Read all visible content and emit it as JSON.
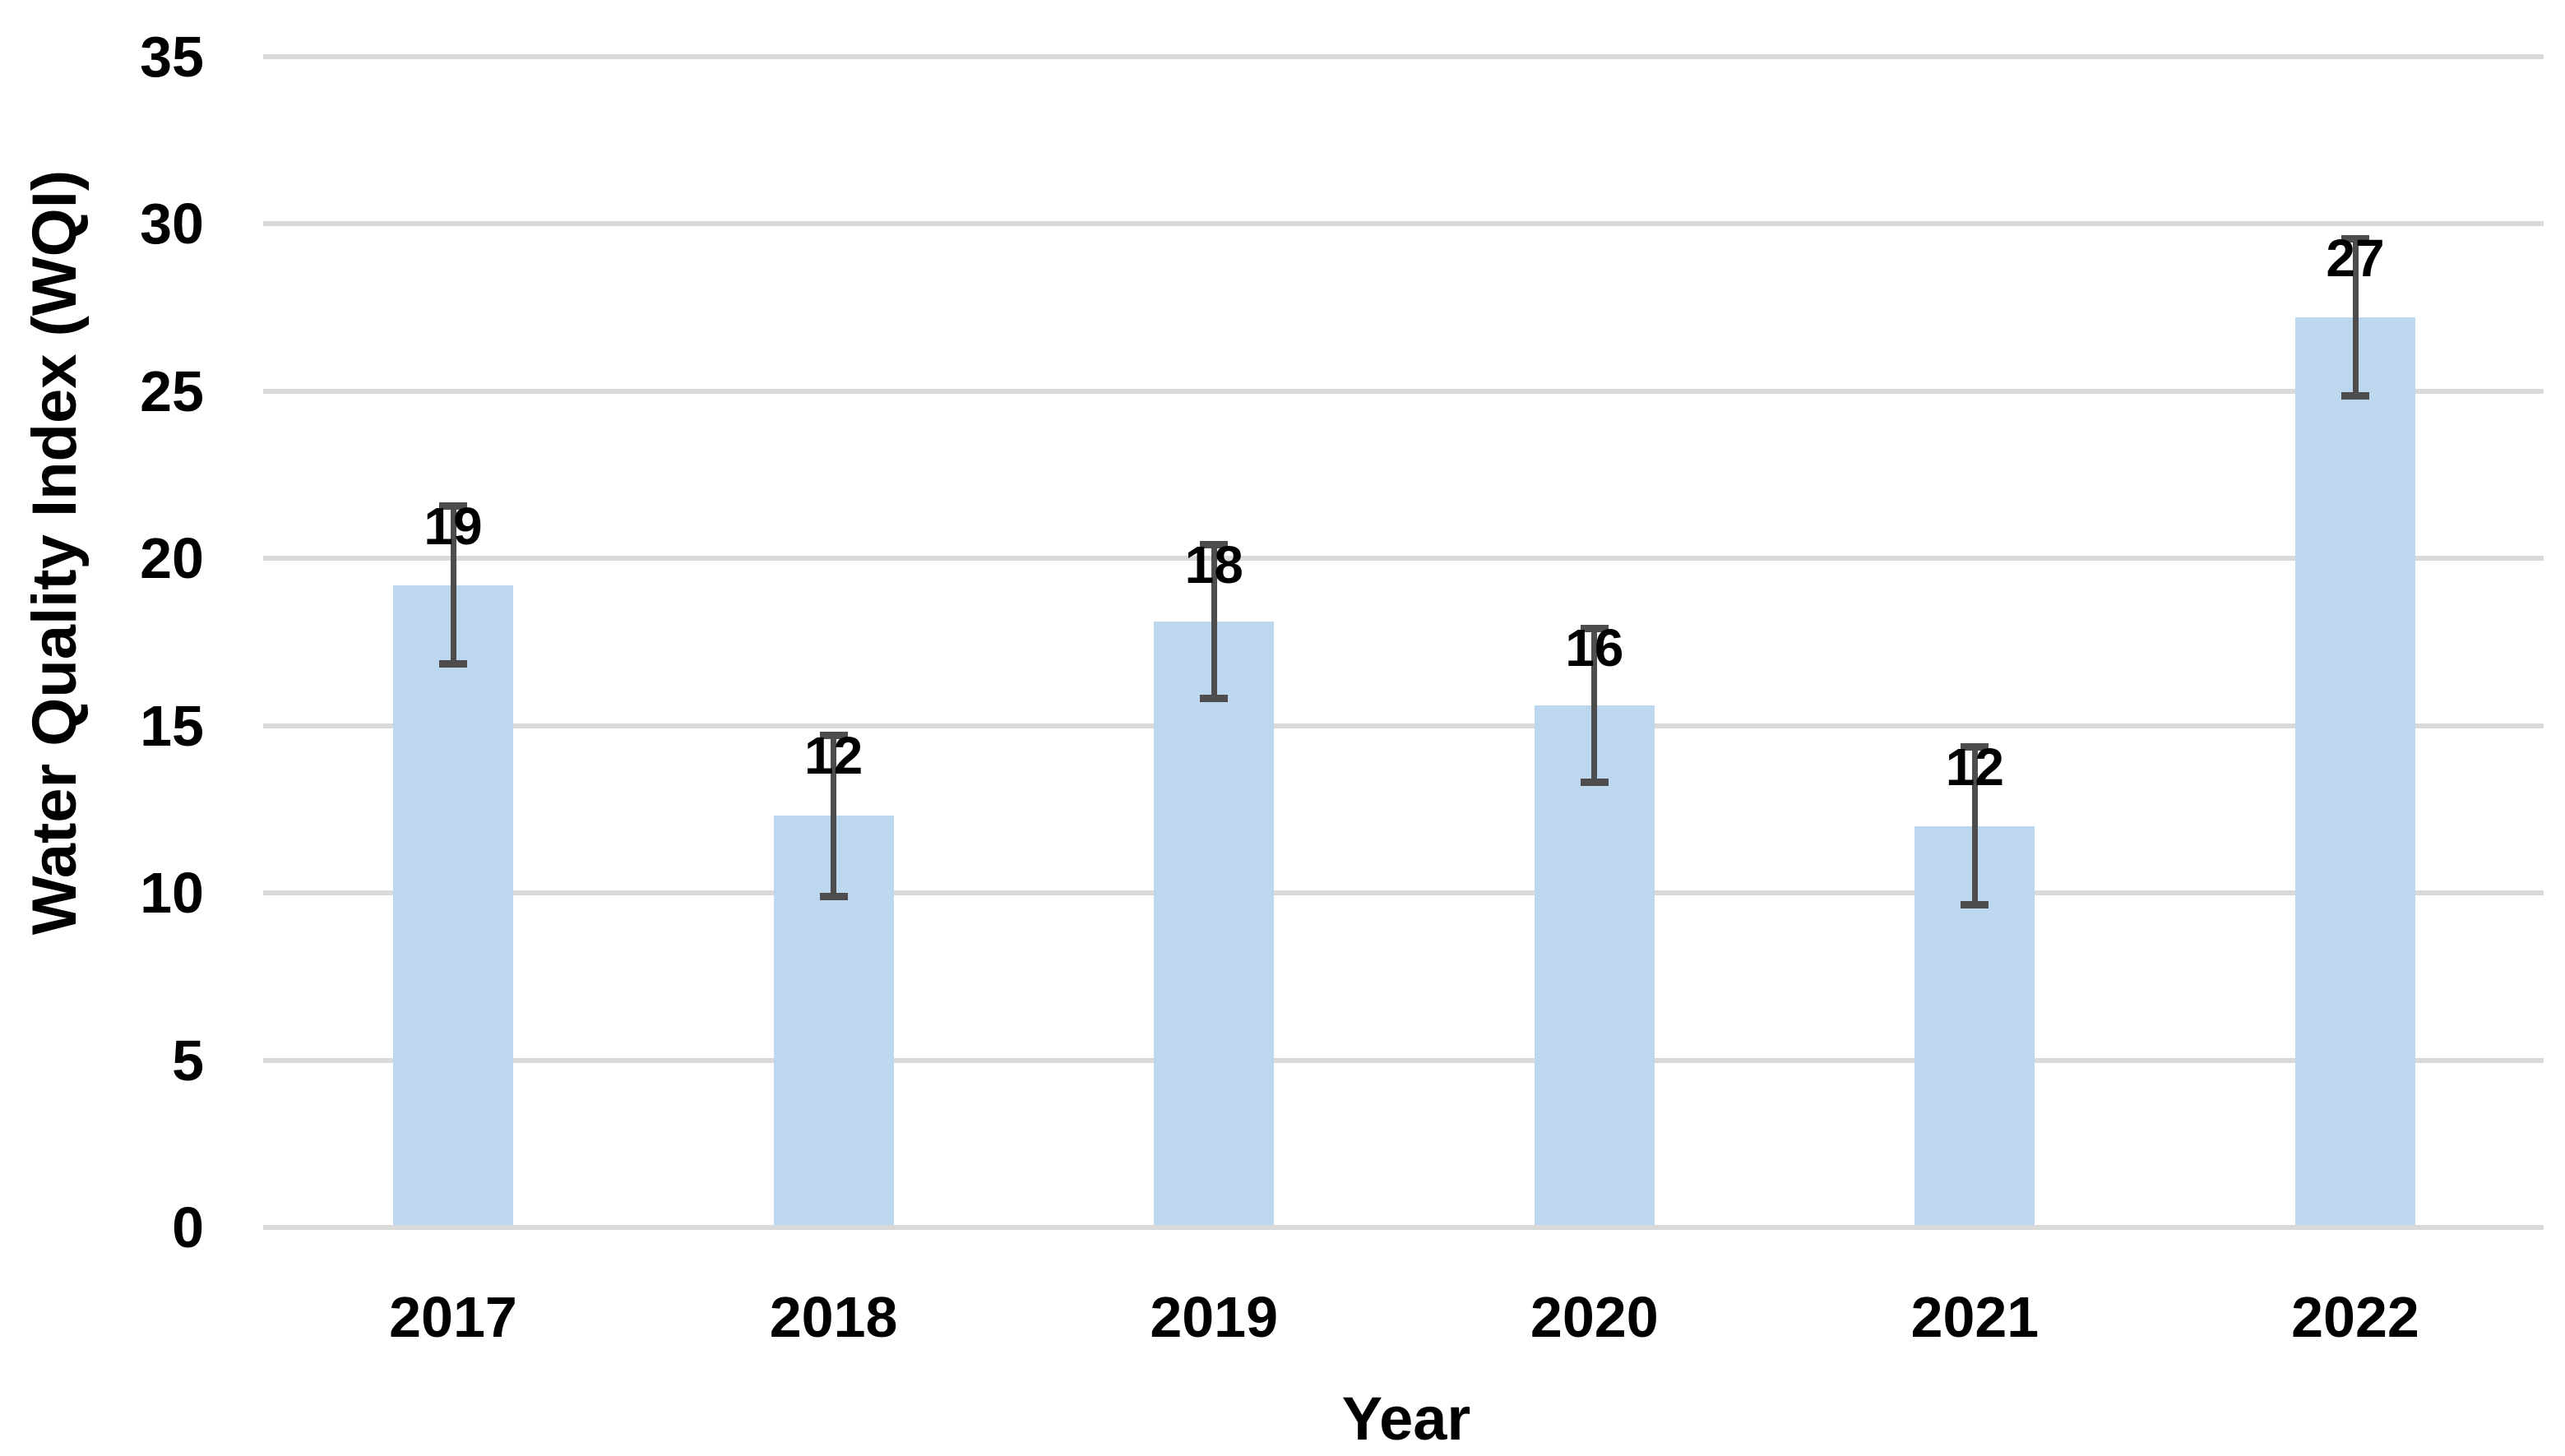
{
  "chart_data": {
    "type": "bar",
    "title": "",
    "xlabel": "Year",
    "ylabel": "Water Quality Index (WQI)",
    "categories": [
      "2017",
      "2018",
      "2019",
      "2020",
      "2021",
      "2022"
    ],
    "values": [
      19.2,
      12.3,
      18.1,
      15.6,
      12.0,
      27.2
    ],
    "data_labels": [
      "19",
      "12",
      "18",
      "16",
      "12",
      "27"
    ],
    "error_bars": [
      2.35,
      2.4,
      2.3,
      2.3,
      2.35,
      2.35
    ],
    "ylim": [
      0,
      35
    ],
    "ytick_step": 5,
    "yticks": [
      "0",
      "5",
      "10",
      "15",
      "20",
      "25",
      "30",
      "35"
    ],
    "grid": true,
    "legend": "none",
    "bar_color": "#bdd7ee",
    "error_bar_color": "#4d4d4d",
    "gridline_color": "#d9d9d9",
    "text_color": "#000000",
    "background_color": "#ffffff"
  }
}
